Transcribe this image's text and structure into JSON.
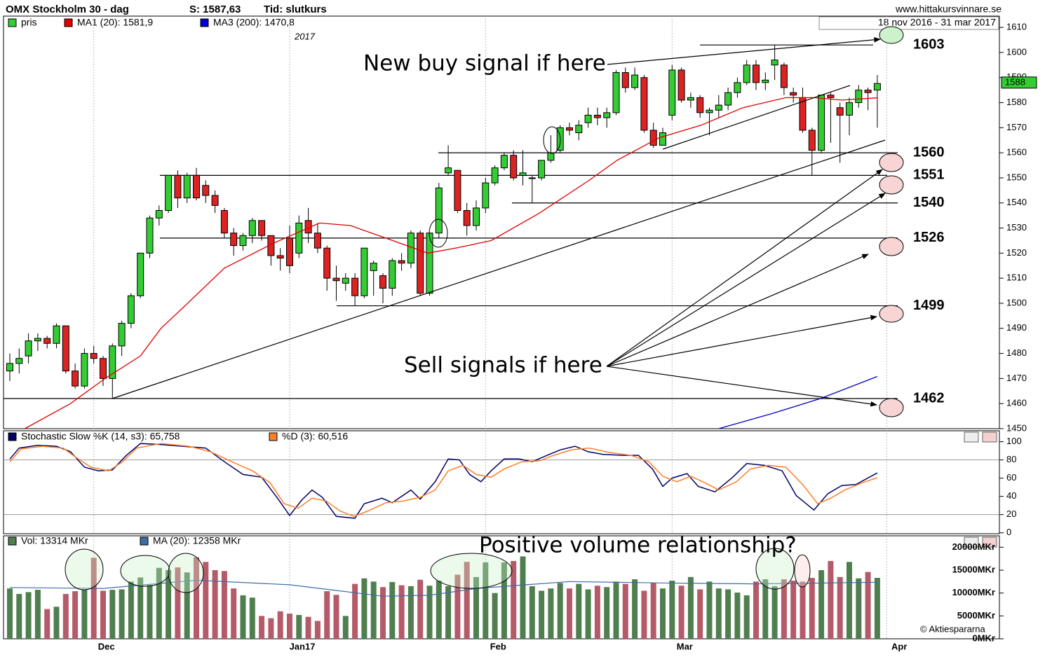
{
  "header": {
    "title": "OMX Stockholm 30 - dag",
    "last": "S: 1587,63",
    "time": "Tid: slutkurs",
    "site": "www.hittakursvinnare.se"
  },
  "chart_data": [
    {
      "type": "candlestick",
      "range_label": "18 nov 2016 - 31 mar 2017",
      "year_label": "2017",
      "series": [
        {
          "name": "pris",
          "color": "#33cc33",
          "down_color": "#dd2222",
          "open": [
            1473,
            1476,
            1479,
            1485,
            1486,
            1484,
            1491,
            1473,
            1467,
            1480,
            1478,
            1470,
            1483,
            1492,
            1503,
            1520,
            1534,
            1537,
            1551,
            1542,
            1551,
            1547,
            1543,
            1537,
            1528,
            1523,
            1527,
            1533,
            1527,
            1519,
            1526,
            1520,
            1533,
            1528,
            1522,
            1510,
            1508,
            1510,
            1503,
            1513,
            1511,
            1506,
            1517,
            1516,
            1528,
            1504,
            1528,
            1552,
            1553,
            1537,
            1531,
            1538,
            1548,
            1554,
            1559,
            1551,
            1550,
            1550,
            1557,
            1561,
            1570,
            1568,
            1572,
            1575,
            1574,
            1576,
            1592,
            1586,
            1590,
            1569,
            1563,
            1575,
            1593,
            1581,
            1582,
            1576,
            1577,
            1579,
            1584,
            1588,
            1595,
            1588,
            1595,
            1595,
            1584,
            1582,
            1569,
            1561,
            1583,
            1578,
            1575,
            1580,
            1585,
            1585
          ],
          "high": [
            1480,
            1482,
            1488,
            1488,
            1487,
            1492,
            1491,
            1476,
            1482,
            1483,
            1479,
            1484,
            1493,
            1504,
            1520,
            1535,
            1539,
            1551,
            1553,
            1552,
            1554,
            1549,
            1545,
            1538,
            1530,
            1528,
            1534,
            1533,
            1527,
            1522,
            1531,
            1535,
            1538,
            1532,
            1523,
            1515,
            1512,
            1512,
            1522,
            1517,
            1512,
            1518,
            1520,
            1529,
            1529,
            1528,
            1548,
            1563,
            1553,
            1540,
            1541,
            1550,
            1555,
            1560,
            1561,
            1561,
            1551,
            1557,
            1567,
            1571,
            1572,
            1573,
            1578,
            1578,
            1578,
            1593,
            1594,
            1594,
            1591,
            1572,
            1570,
            1595,
            1594,
            1584,
            1583,
            1578,
            1583,
            1586,
            1590,
            1597,
            1597,
            1592,
            1603,
            1596,
            1586,
            1586,
            1570,
            1583,
            1584,
            1580,
            1582,
            1587,
            1586,
            1591
          ],
          "low": [
            1469,
            1472,
            1476,
            1481,
            1482,
            1482,
            1472,
            1466,
            1466,
            1476,
            1467,
            1462,
            1479,
            1490,
            1502,
            1518,
            1531,
            1536,
            1538,
            1540,
            1541,
            1540,
            1536,
            1526,
            1519,
            1521,
            1524,
            1525,
            1515,
            1513,
            1512,
            1518,
            1524,
            1520,
            1505,
            1501,
            1505,
            1499,
            1502,
            1503,
            1500,
            1503,
            1513,
            1514,
            1503,
            1503,
            1526,
            1551,
            1536,
            1527,
            1529,
            1536,
            1547,
            1553,
            1549,
            1547,
            1540,
            1549,
            1556,
            1560,
            1567,
            1565,
            1570,
            1571,
            1570,
            1575,
            1584,
            1585,
            1568,
            1562,
            1563,
            1573,
            1580,
            1578,
            1574,
            1567,
            1574,
            1577,
            1582,
            1587,
            1585,
            1585,
            1589,
            1583,
            1580,
            1568,
            1551,
            1560,
            1564,
            1556,
            1567,
            1578,
            1577,
            1570
          ],
          "close": [
            1476,
            1478,
            1485,
            1486,
            1484,
            1491,
            1473,
            1467,
            1480,
            1478,
            1470,
            1483,
            1492,
            1503,
            1520,
            1534,
            1537,
            1551,
            1542,
            1551,
            1542,
            1543,
            1539,
            1528,
            1523,
            1527,
            1533,
            1527,
            1519,
            1518,
            1515,
            1532,
            1528,
            1522,
            1510,
            1509,
            1510,
            1503,
            1522,
            1516,
            1506,
            1517,
            1516,
            1528,
            1504,
            1528,
            1546,
            1554,
            1537,
            1531,
            1538,
            1548,
            1554,
            1559,
            1550,
            1552,
            1550,
            1557,
            1560,
            1570,
            1569,
            1571,
            1575,
            1574,
            1576,
            1592,
            1586,
            1591,
            1569,
            1563,
            1568,
            1593,
            1581,
            1582,
            1576,
            1577,
            1579,
            1584,
            1588,
            1595,
            1588,
            1589,
            1597,
            1586,
            1583,
            1569,
            1561,
            1583,
            1582,
            1575,
            1580,
            1585,
            1584,
            1587.63
          ]
        }
      ],
      "lines": [
        {
          "name": "MA1 (20): 1581,9",
          "color": "#e00000",
          "x": [
            1.6,
            6.5,
            10.2,
            14,
            16.2,
            18.5,
            23,
            28.3,
            33.2,
            36.5,
            40.3,
            44.8,
            47.8,
            51.6,
            56.8,
            62.1,
            65.1,
            69.6,
            74.1,
            78.6,
            83.2,
            86.2,
            89.2,
            93
          ],
          "values": [
            1450,
            1460,
            1470,
            1479,
            1490,
            1498,
            1514,
            1524,
            1532,
            1531,
            1526,
            1520,
            1522,
            1525,
            1536,
            1549,
            1557,
            1566,
            1571,
            1578,
            1582,
            1582,
            1581,
            1581.9
          ]
        },
        {
          "name": "MA3 (200): 1470,8",
          "color": "#0000cc",
          "x": [
            76,
            81.7,
            86.9,
            93
          ],
          "values": [
            1450,
            1456,
            1462,
            1470.8
          ]
        }
      ],
      "last_price": 1588,
      "levels": [
        1603,
        1560,
        1551,
        1540,
        1526,
        1499,
        1462
      ],
      "annotations": [
        "New buy signal if here",
        "Sell signals if here"
      ],
      "ylim": [
        1450,
        1614.5
      ],
      "yticks": [
        1450,
        1460,
        1470,
        1480,
        1490,
        1500,
        1510,
        1520,
        1530,
        1540,
        1550,
        1560,
        1570,
        1580,
        1590,
        1600,
        1610
      ],
      "xticks": [
        {
          "value": 9,
          "label": "Dec"
        },
        {
          "value": 30,
          "label": "Jan17"
        },
        {
          "value": 51,
          "label": "Feb"
        },
        {
          "value": 71,
          "label": "Mar"
        },
        {
          "value": 94,
          "label": "Apr"
        }
      ]
    },
    {
      "type": "line",
      "series": [
        {
          "name": "Stochastic Slow %K (14, s3): 65,758",
          "color": "#000066",
          "x": [
            0,
            1,
            3,
            5,
            6.5,
            8,
            9.5,
            11,
            12.5,
            14,
            16,
            18.5,
            21,
            23,
            25,
            27,
            28.7,
            30,
            31.3,
            32.4,
            33.5,
            35,
            37,
            38,
            39.9,
            41,
            43,
            44,
            45.6,
            47,
            48.2,
            49.3,
            50.5,
            51.6,
            53,
            54.6,
            56,
            57.6,
            59,
            60.6,
            62,
            63.6,
            65.8,
            67.4,
            68.9,
            70,
            71,
            72.6,
            73.8,
            75.6,
            77.5,
            79,
            80.9,
            82.8,
            84.3,
            86.2,
            87.7,
            89.2,
            90.7,
            93
          ],
          "values": [
            81,
            93,
            96,
            95,
            89,
            72,
            68,
            69,
            85,
            98,
            97,
            95,
            93,
            78,
            64,
            61,
            38,
            19,
            36,
            47,
            39,
            18,
            16,
            32,
            38,
            33,
            47,
            37,
            56,
            81,
            80,
            64,
            56,
            68,
            81,
            81,
            78,
            85,
            91,
            95,
            89,
            86,
            85,
            85,
            70,
            51,
            60,
            65,
            51,
            45,
            61,
            76,
            74,
            68,
            41,
            25,
            43,
            52,
            53,
            65.758
          ]
        },
        {
          "name": "%D (3): 60,516",
          "color": "#ff7f27",
          "x": [
            0,
            1.2,
            3.5,
            5.7,
            7.2,
            8.7,
            10.6,
            12.1,
            13.6,
            16.2,
            19.2,
            21.5,
            23.8,
            26,
            27.9,
            29.4,
            30.9,
            32.4,
            33.9,
            35.4,
            36.9,
            38.4,
            40.3,
            42.2,
            44,
            45.6,
            47,
            48.6,
            50,
            51.6,
            53,
            54.9,
            56.8,
            58.3,
            60.2,
            62.1,
            64.4,
            66.6,
            68.5,
            70,
            71.5,
            73,
            74.5,
            76,
            77.9,
            79.4,
            81.3,
            83.2,
            85,
            86.6,
            88,
            89.5,
            91.4,
            93
          ],
          "values": [
            78,
            92,
            95,
            93,
            82,
            72,
            68,
            78,
            93,
            98,
            95,
            89,
            78,
            68,
            55,
            32,
            27,
            38,
            35,
            24,
            18,
            24,
            33,
            35,
            39,
            47,
            68,
            74,
            64,
            61,
            70,
            78,
            79,
            85,
            91,
            93,
            88,
            85,
            78,
            62,
            56,
            62,
            55,
            47,
            56,
            70,
            74,
            72,
            53,
            32,
            38,
            47,
            55,
            60.516
          ]
        }
      ],
      "ylim": [
        -1,
        112
      ],
      "yticks": [
        0,
        20,
        40,
        60,
        80,
        100
      ],
      "bands": [
        20,
        80
      ]
    },
    {
      "type": "bar",
      "series": [
        {
          "name": "Vol: 13314 MKr",
          "color": "#4f7f4f",
          "down_color": "#b55a68",
          "values": [
            11000,
            9800,
            10200,
            10700,
            6500,
            7000,
            9800,
            10400,
            10800,
            17700,
            10500,
            10700,
            10800,
            12500,
            13400,
            11800,
            15500,
            15000,
            15600,
            14500,
            17800,
            16800,
            15000,
            14800,
            11000,
            9500,
            9000,
            5000,
            4500,
            6000,
            5500,
            5200,
            4800,
            3900,
            10400,
            9600,
            5000,
            12000,
            13200,
            12500,
            11300,
            12400,
            11700,
            11500,
            12900,
            11600,
            12700,
            11500,
            14000,
            16800,
            13500,
            16700,
            10000,
            16700,
            17000,
            18000,
            11500,
            10500,
            11000,
            12200,
            11000,
            12000,
            10800,
            11600,
            11300,
            12500,
            12000,
            13000,
            10500,
            12200,
            11000,
            12700,
            11600,
            13500,
            10800,
            12500,
            11000,
            10800,
            10100,
            9500,
            12500,
            13000,
            11500,
            13000,
            12700,
            12500,
            13300,
            15000,
            17000,
            13500,
            16800,
            13200,
            14600,
            13314
          ]
        }
      ],
      "lines": [
        {
          "name": "MA (20): 12358 MKr",
          "color": "#3b6ea5",
          "x": [
            0,
            10,
            20,
            30,
            40,
            45,
            50,
            60,
            70,
            80,
            93
          ],
          "values": [
            11200,
            11000,
            12800,
            11800,
            9300,
            9500,
            11000,
            12500,
            12200,
            12000,
            12358
          ]
        }
      ],
      "annotation": "Positive volume relationship?",
      "credit": "© Aktiespararna",
      "ylim": [
        0,
        22500
      ],
      "yticks": [
        {
          "value": 0,
          "label": "0MKr"
        },
        {
          "value": 5000,
          "label": "5000MKr"
        },
        {
          "value": 10000,
          "label": "10000MKr"
        },
        {
          "value": 15000,
          "label": "15000MKr"
        },
        {
          "value": 20000,
          "label": "20000MKr"
        }
      ]
    }
  ]
}
